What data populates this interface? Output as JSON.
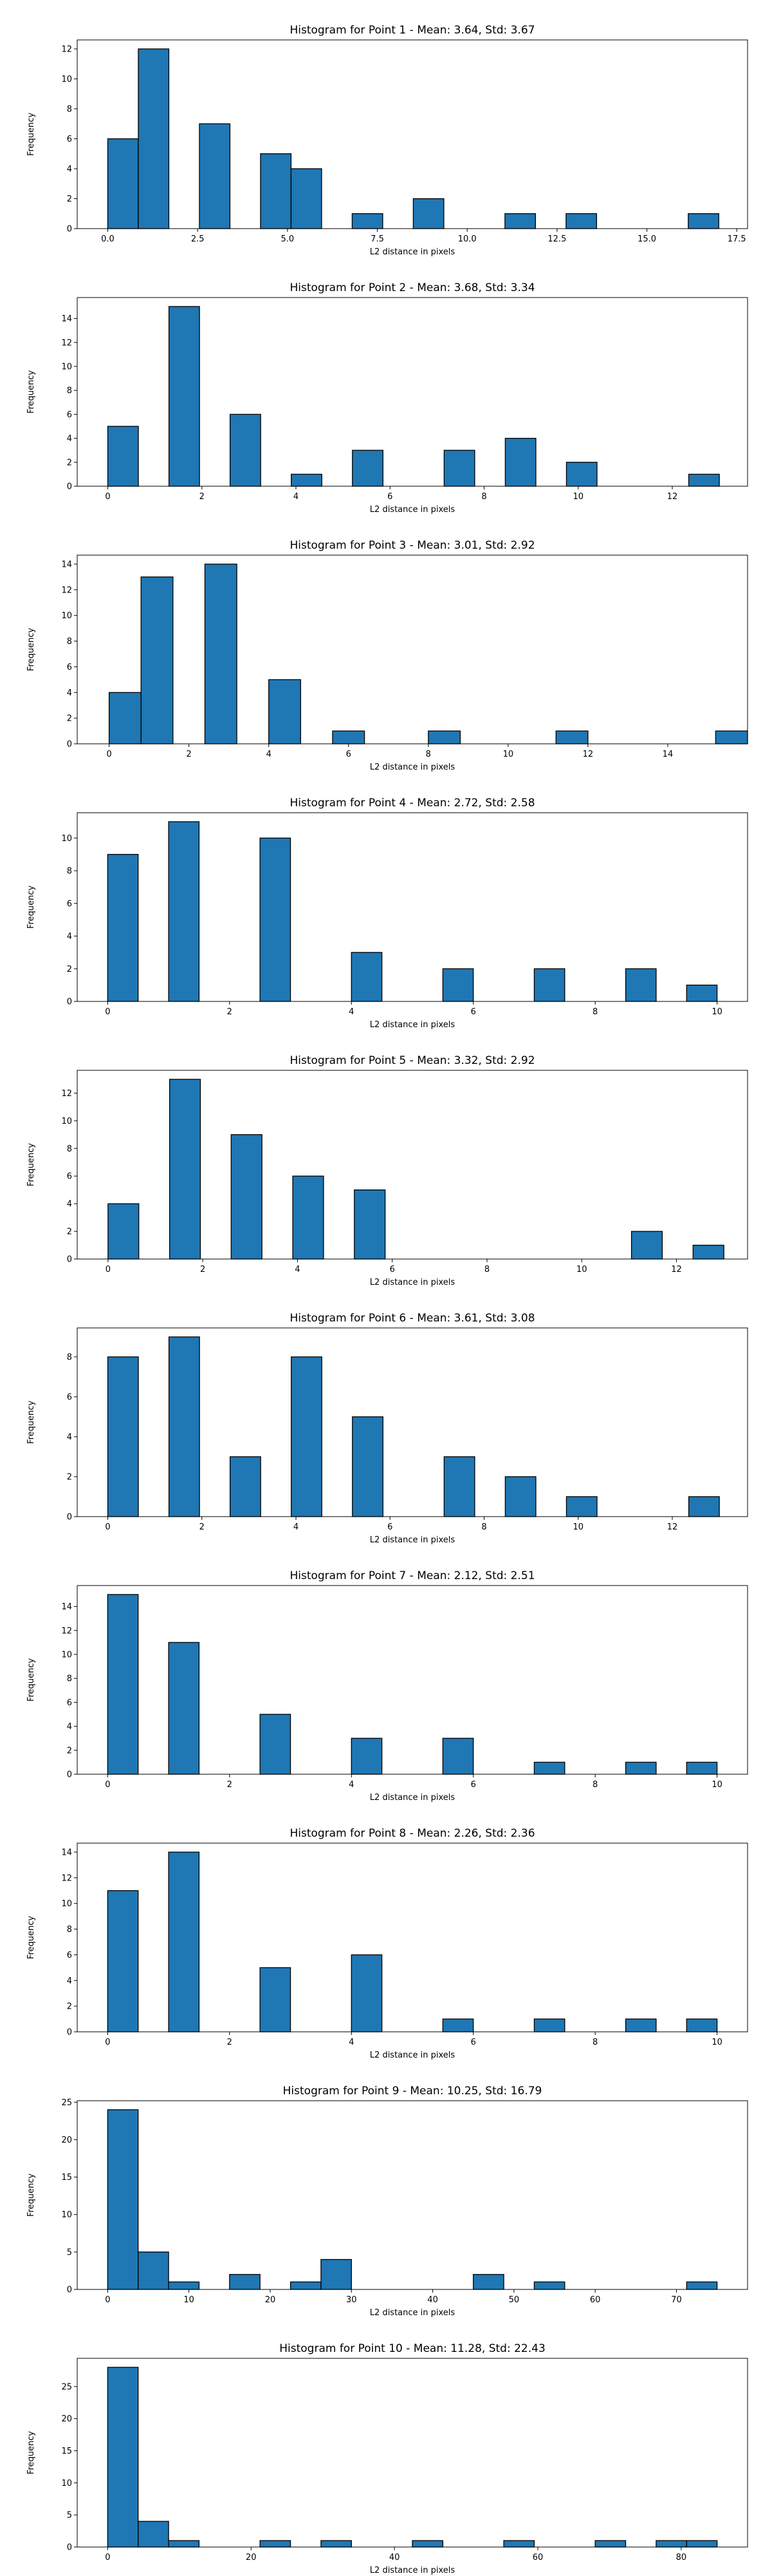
{
  "colors": {
    "bar_fill": "#1f77b4",
    "bar_edge": "#000000",
    "axes": "#000000",
    "background": "#ffffff"
  },
  "chart_data": [
    {
      "type": "bar",
      "title": "Histogram for Point 1 - Mean: 3.64, Std: 3.67",
      "xlabel": "L2 distance in pixels",
      "ylabel": "Frequency",
      "xlim": [
        -0.85,
        17.8
      ],
      "ylim": [
        0,
        12.6
      ],
      "xticks": [
        0.0,
        2.5,
        5.0,
        7.5,
        10.0,
        12.5,
        15.0,
        17.5
      ],
      "xtick_labels": [
        "0.0",
        "2.5",
        "5.0",
        "7.5",
        "10.0",
        "12.5",
        "15.0",
        "17.5"
      ],
      "yticks": [
        0,
        2,
        4,
        6,
        8,
        10,
        12
      ],
      "ytick_labels": [
        "0",
        "2",
        "4",
        "6",
        "8",
        "10",
        "12"
      ],
      "bin_width": 0.85,
      "bins": [
        {
          "x": 0.0,
          "count": 6
        },
        {
          "x": 0.85,
          "count": 12
        },
        {
          "x": 2.55,
          "count": 7
        },
        {
          "x": 4.25,
          "count": 5
        },
        {
          "x": 5.1,
          "count": 4
        },
        {
          "x": 6.8,
          "count": 1
        },
        {
          "x": 8.5,
          "count": 2
        },
        {
          "x": 11.05,
          "count": 1
        },
        {
          "x": 12.75,
          "count": 1
        },
        {
          "x": 16.15,
          "count": 1
        }
      ],
      "grid": false
    },
    {
      "type": "bar",
      "title": "Histogram for Point 2 - Mean: 3.68, Std: 3.34",
      "xlabel": "L2 distance in pixels",
      "ylabel": "Frequency",
      "xlim": [
        -0.65,
        13.6
      ],
      "ylim": [
        0,
        15.75
      ],
      "xticks": [
        0,
        2,
        4,
        6,
        8,
        10,
        12
      ],
      "xtick_labels": [
        "0",
        "2",
        "4",
        "6",
        "8",
        "10",
        "12"
      ],
      "yticks": [
        0,
        2,
        4,
        6,
        8,
        10,
        12,
        14
      ],
      "ytick_labels": [
        "0",
        "2",
        "4",
        "6",
        "8",
        "10",
        "12",
        "14"
      ],
      "bin_width": 0.65,
      "bins": [
        {
          "x": 0.0,
          "count": 5
        },
        {
          "x": 1.3,
          "count": 15
        },
        {
          "x": 2.6,
          "count": 6
        },
        {
          "x": 3.9,
          "count": 1
        },
        {
          "x": 5.2,
          "count": 3
        },
        {
          "x": 7.15,
          "count": 3
        },
        {
          "x": 8.45,
          "count": 4
        },
        {
          "x": 9.75,
          "count": 2
        },
        {
          "x": 12.35,
          "count": 1
        }
      ],
      "grid": false
    },
    {
      "type": "bar",
      "title": "Histogram for Point 3 - Mean: 3.01, Std: 2.92",
      "xlabel": "L2 distance in pixels",
      "ylabel": "Frequency",
      "xlim": [
        -0.8,
        16.0
      ],
      "ylim": [
        0,
        14.7
      ],
      "xticks": [
        0,
        2,
        4,
        6,
        8,
        10,
        12,
        14
      ],
      "xtick_labels": [
        "0",
        "2",
        "4",
        "6",
        "8",
        "10",
        "12",
        "14"
      ],
      "yticks": [
        0,
        2,
        4,
        6,
        8,
        10,
        12,
        14
      ],
      "ytick_labels": [
        "0",
        "2",
        "4",
        "6",
        "8",
        "10",
        "12",
        "14"
      ],
      "bin_width": 0.8,
      "bins": [
        {
          "x": 0.0,
          "count": 4
        },
        {
          "x": 0.8,
          "count": 13
        },
        {
          "x": 2.4,
          "count": 14
        },
        {
          "x": 4.0,
          "count": 5
        },
        {
          "x": 5.6,
          "count": 1
        },
        {
          "x": 8.0,
          "count": 1
        },
        {
          "x": 11.2,
          "count": 1
        },
        {
          "x": 15.2,
          "count": 1
        }
      ],
      "grid": false
    },
    {
      "type": "bar",
      "title": "Histogram for Point 4 - Mean: 2.72, Std: 2.58",
      "xlabel": "L2 distance in pixels",
      "ylabel": "Frequency",
      "xlim": [
        -0.5,
        10.5
      ],
      "ylim": [
        0,
        11.55
      ],
      "xticks": [
        0,
        2,
        4,
        6,
        8,
        10
      ],
      "xtick_labels": [
        "0",
        "2",
        "4",
        "6",
        "8",
        "10"
      ],
      "yticks": [
        0,
        2,
        4,
        6,
        8,
        10
      ],
      "ytick_labels": [
        "0",
        "2",
        "4",
        "6",
        "8",
        "10"
      ],
      "bin_width": 0.5,
      "bins": [
        {
          "x": 0.0,
          "count": 9
        },
        {
          "x": 1.0,
          "count": 11
        },
        {
          "x": 2.5,
          "count": 10
        },
        {
          "x": 4.0,
          "count": 3
        },
        {
          "x": 5.5,
          "count": 2
        },
        {
          "x": 7.0,
          "count": 2
        },
        {
          "x": 8.5,
          "count": 2
        },
        {
          "x": 9.5,
          "count": 1
        }
      ],
      "grid": false
    },
    {
      "type": "bar",
      "title": "Histogram for Point 5 - Mean: 3.32, Std: 2.92",
      "xlabel": "L2 distance in pixels",
      "ylabel": "Frequency",
      "xlim": [
        -0.65,
        13.5
      ],
      "ylim": [
        0,
        13.65
      ],
      "xticks": [
        0,
        2,
        4,
        6,
        8,
        10,
        12
      ],
      "xtick_labels": [
        "0",
        "2",
        "4",
        "6",
        "8",
        "10",
        "12"
      ],
      "yticks": [
        0,
        2,
        4,
        6,
        8,
        10,
        12
      ],
      "ytick_labels": [
        "0",
        "2",
        "4",
        "6",
        "8",
        "10",
        "12"
      ],
      "bin_width": 0.65,
      "bins": [
        {
          "x": 0.0,
          "count": 4
        },
        {
          "x": 1.3,
          "count": 13
        },
        {
          "x": 2.6,
          "count": 9
        },
        {
          "x": 3.9,
          "count": 6
        },
        {
          "x": 5.2,
          "count": 5
        },
        {
          "x": 11.05,
          "count": 2
        },
        {
          "x": 12.35,
          "count": 1
        }
      ],
      "grid": false
    },
    {
      "type": "bar",
      "title": "Histogram for Point 6 - Mean: 3.61, Std: 3.08",
      "xlabel": "L2 distance in pixels",
      "ylabel": "Frequency",
      "xlim": [
        -0.65,
        13.6
      ],
      "ylim": [
        0,
        9.45
      ],
      "xticks": [
        0,
        2,
        4,
        6,
        8,
        10,
        12
      ],
      "xtick_labels": [
        "0",
        "2",
        "4",
        "6",
        "8",
        "10",
        "12"
      ],
      "yticks": [
        0,
        2,
        4,
        6,
        8
      ],
      "ytick_labels": [
        "0",
        "2",
        "4",
        "6",
        "8"
      ],
      "bin_width": 0.65,
      "bins": [
        {
          "x": 0.0,
          "count": 8
        },
        {
          "x": 1.3,
          "count": 9
        },
        {
          "x": 2.6,
          "count": 3
        },
        {
          "x": 3.9,
          "count": 8
        },
        {
          "x": 5.2,
          "count": 5
        },
        {
          "x": 7.15,
          "count": 3
        },
        {
          "x": 8.45,
          "count": 2
        },
        {
          "x": 9.75,
          "count": 1
        },
        {
          "x": 12.35,
          "count": 1
        }
      ],
      "grid": false
    },
    {
      "type": "bar",
      "title": "Histogram for Point 7 - Mean: 2.12, Std: 2.51",
      "xlabel": "L2 distance in pixels",
      "ylabel": "Frequency",
      "xlim": [
        -0.5,
        10.5
      ],
      "ylim": [
        0,
        15.75
      ],
      "xticks": [
        0,
        2,
        4,
        6,
        8,
        10
      ],
      "xtick_labels": [
        "0",
        "2",
        "4",
        "6",
        "8",
        "10"
      ],
      "yticks": [
        0,
        2,
        4,
        6,
        8,
        10,
        12,
        14
      ],
      "ytick_labels": [
        "0",
        "2",
        "4",
        "6",
        "8",
        "10",
        "12",
        "14"
      ],
      "bin_width": 0.5,
      "bins": [
        {
          "x": 0.0,
          "count": 15
        },
        {
          "x": 1.0,
          "count": 11
        },
        {
          "x": 2.5,
          "count": 5
        },
        {
          "x": 4.0,
          "count": 3
        },
        {
          "x": 5.5,
          "count": 3
        },
        {
          "x": 7.0,
          "count": 1
        },
        {
          "x": 8.5,
          "count": 1
        },
        {
          "x": 9.5,
          "count": 1
        }
      ],
      "grid": false
    },
    {
      "type": "bar",
      "title": "Histogram for Point 8 - Mean: 2.26, Std: 2.36",
      "xlabel": "L2 distance in pixels",
      "ylabel": "Frequency",
      "xlim": [
        -0.5,
        10.5
      ],
      "ylim": [
        0,
        14.7
      ],
      "xticks": [
        0,
        2,
        4,
        6,
        8,
        10
      ],
      "xtick_labels": [
        "0",
        "2",
        "4",
        "6",
        "8",
        "10"
      ],
      "yticks": [
        0,
        2,
        4,
        6,
        8,
        10,
        12,
        14
      ],
      "ytick_labels": [
        "0",
        "2",
        "4",
        "6",
        "8",
        "10",
        "12",
        "14"
      ],
      "bin_width": 0.5,
      "bins": [
        {
          "x": 0.0,
          "count": 11
        },
        {
          "x": 1.0,
          "count": 14
        },
        {
          "x": 2.5,
          "count": 5
        },
        {
          "x": 4.0,
          "count": 6
        },
        {
          "x": 5.5,
          "count": 1
        },
        {
          "x": 7.0,
          "count": 1
        },
        {
          "x": 8.5,
          "count": 1
        },
        {
          "x": 9.5,
          "count": 1
        }
      ],
      "grid": false
    },
    {
      "type": "bar",
      "title": "Histogram for Point 9 - Mean: 10.25, Std: 16.79",
      "xlabel": "L2 distance in pixels",
      "ylabel": "Frequency",
      "xlim": [
        -3.75,
        78.75
      ],
      "ylim": [
        0,
        25.2
      ],
      "xticks": [
        0,
        10,
        20,
        30,
        40,
        50,
        60,
        70
      ],
      "xtick_labels": [
        "0",
        "10",
        "20",
        "30",
        "40",
        "50",
        "60",
        "70"
      ],
      "yticks": [
        0,
        5,
        10,
        15,
        20,
        25
      ],
      "ytick_labels": [
        "0",
        "5",
        "10",
        "15",
        "20",
        "25"
      ],
      "bin_width": 3.75,
      "bins": [
        {
          "x": 0.0,
          "count": 24
        },
        {
          "x": 3.75,
          "count": 5
        },
        {
          "x": 7.5,
          "count": 1
        },
        {
          "x": 15.0,
          "count": 2
        },
        {
          "x": 22.5,
          "count": 1
        },
        {
          "x": 26.25,
          "count": 4
        },
        {
          "x": 45.0,
          "count": 2
        },
        {
          "x": 52.5,
          "count": 1
        },
        {
          "x": 71.25,
          "count": 1
        }
      ],
      "grid": false
    },
    {
      "type": "bar",
      "title": "Histogram for Point 10 - Mean: 11.28, Std: 22.43",
      "xlabel": "L2 distance in pixels",
      "ylabel": "Frequency",
      "xlim": [
        -4.25,
        89.25
      ],
      "ylim": [
        0,
        29.4
      ],
      "xticks": [
        0,
        20,
        40,
        60,
        80
      ],
      "xtick_labels": [
        "0",
        "20",
        "40",
        "60",
        "80"
      ],
      "yticks": [
        0,
        5,
        10,
        15,
        20,
        25
      ],
      "ytick_labels": [
        "0",
        "5",
        "10",
        "15",
        "20",
        "25"
      ],
      "bin_width": 4.25,
      "bins": [
        {
          "x": 0.0,
          "count": 28
        },
        {
          "x": 4.25,
          "count": 4
        },
        {
          "x": 8.5,
          "count": 1
        },
        {
          "x": 21.25,
          "count": 1
        },
        {
          "x": 29.75,
          "count": 1
        },
        {
          "x": 42.5,
          "count": 1
        },
        {
          "x": 55.25,
          "count": 1
        },
        {
          "x": 68.0,
          "count": 1
        },
        {
          "x": 76.5,
          "count": 1
        },
        {
          "x": 80.75,
          "count": 1
        }
      ],
      "grid": false
    }
  ]
}
